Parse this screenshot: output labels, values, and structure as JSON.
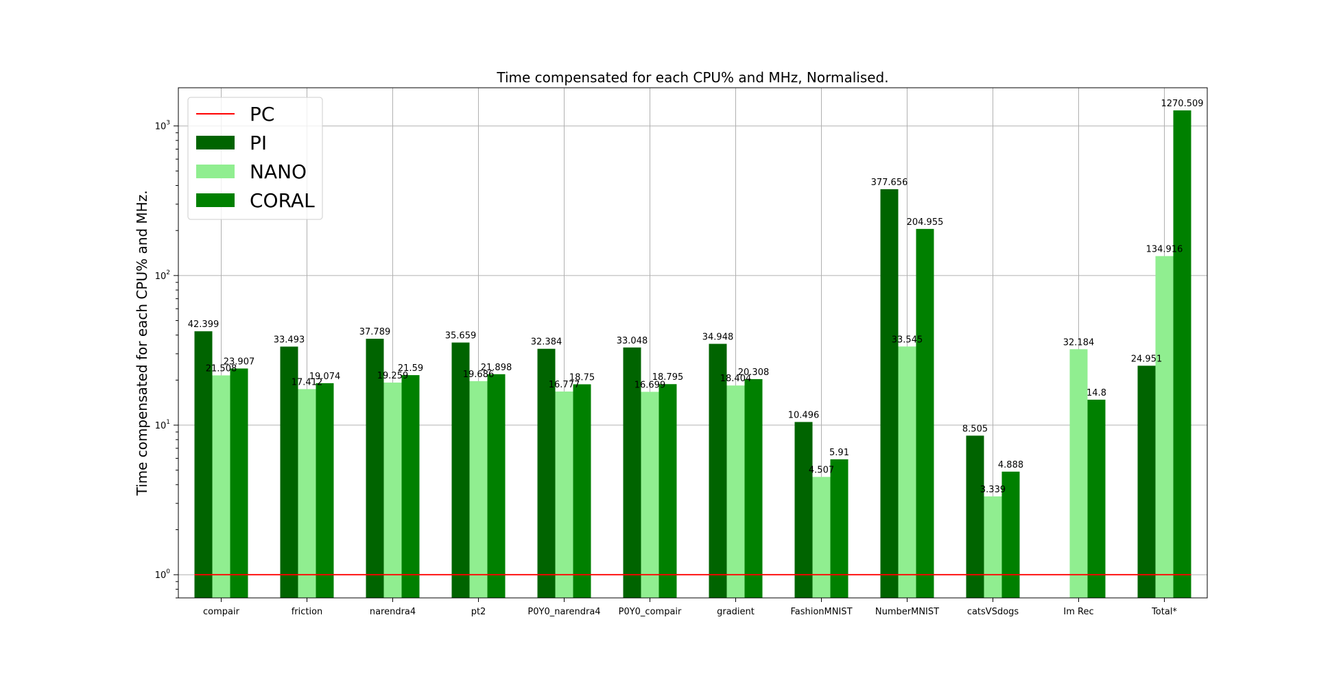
{
  "chart_data": {
    "type": "bar",
    "title": "Time compensated for each CPU% and MHz, Normalised.",
    "xlabel": "",
    "ylabel": "Time compensated for each CPU% and MHz.",
    "yscale": "log",
    "ylim": [
      0.7,
      1800
    ],
    "yticks": [
      {
        "value": 1,
        "base": "10",
        "exp": "0"
      },
      {
        "value": 10,
        "base": "10",
        "exp": "1"
      },
      {
        "value": 100,
        "base": "10",
        "exp": "2"
      },
      {
        "value": 1000,
        "base": "10",
        "exp": "3"
      }
    ],
    "grid": true,
    "legend_position": "top-left",
    "categories": [
      "compair",
      "friction",
      "narendra4",
      "pt2",
      "P0Y0_narendra4",
      "P0Y0_compair",
      "gradient",
      "FashionMNIST",
      "NumberMNIST",
      "catsVSdogs",
      "Im Rec",
      "Total*"
    ],
    "series": [
      {
        "name": "PI",
        "color": "#006400",
        "values": [
          42.399,
          33.493,
          37.789,
          35.659,
          32.384,
          33.048,
          34.948,
          10.496,
          377.656,
          8.505,
          null,
          24.951
        ],
        "labels": [
          "42.399",
          "33.493",
          "37.789",
          "35.659",
          "32.384",
          "33.048",
          "34.948",
          "10.496",
          "377.656",
          "8.505",
          "",
          "24.951"
        ]
      },
      {
        "name": "NANO",
        "color": "#90ee90",
        "values": [
          21.508,
          17.412,
          19.259,
          19.686,
          16.777,
          16.699,
          18.404,
          4.507,
          33.545,
          3.339,
          32.184,
          134.916
        ],
        "labels": [
          "21.508",
          "17.412",
          "19.259",
          "19.686",
          "16.777",
          "16.699",
          "18.404",
          "4.507",
          "33.545",
          "3.339",
          "32.184",
          "134.916"
        ]
      },
      {
        "name": "CORAL",
        "color": "#008000",
        "values": [
          23.907,
          19.074,
          21.59,
          21.898,
          18.75,
          18.795,
          20.308,
          5.91,
          204.955,
          4.888,
          14.8,
          1270.509
        ],
        "labels": [
          "23.907",
          "19.074",
          "21.59",
          "21.898",
          "18.75",
          "18.795",
          "20.308",
          "5.91",
          "204.955",
          "4.888",
          "14.8",
          "1270.509"
        ]
      }
    ],
    "reference_line": {
      "name": "PC",
      "value": 1,
      "color": "#ff0000"
    }
  }
}
